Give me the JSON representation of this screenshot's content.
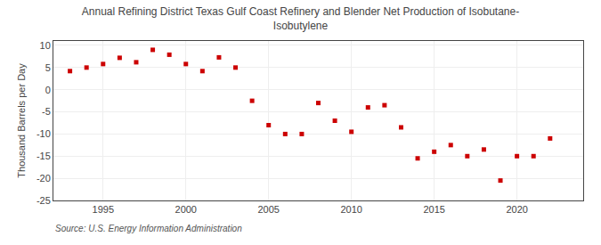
{
  "chart_data": {
    "type": "scatter",
    "title": "Annual Refining District Texas Gulf Coast Refinery and Blender Net Production of Isobutane-\nIsobutylene",
    "ylabel": "Thousand Barrels per Day",
    "annotations": [
      "Source: U.S. Energy Information Administration"
    ],
    "x": [
      1993,
      1994,
      1995,
      1996,
      1997,
      1998,
      1999,
      2000,
      2001,
      2002,
      2003,
      2004,
      2005,
      2006,
      2007,
      2008,
      2009,
      2010,
      2011,
      2012,
      2013,
      2014,
      2015,
      2016,
      2017,
      2018,
      2019,
      2020,
      2021,
      2022
    ],
    "values": [
      4.2,
      5.0,
      5.8,
      7.2,
      6.2,
      9.0,
      7.9,
      5.8,
      4.2,
      7.3,
      5.0,
      -2.5,
      -8.0,
      -10.0,
      -10.0,
      -3.0,
      -7.0,
      -9.5,
      -4.0,
      -3.5,
      -8.5,
      -15.5,
      -14.0,
      -12.5,
      -15.0,
      -13.5,
      -20.5,
      -15.0,
      -15.0,
      -11.0
    ],
    "color": "#cc0000",
    "marker": "square",
    "xlim": [
      1992,
      2024
    ],
    "ylim": [
      -25,
      11
    ],
    "xticks": [
      1995,
      2000,
      2005,
      2010,
      2015,
      2020
    ],
    "yticks": [
      -25,
      -20,
      -15,
      -10,
      -5,
      0,
      5,
      10
    ],
    "grid": true
  }
}
